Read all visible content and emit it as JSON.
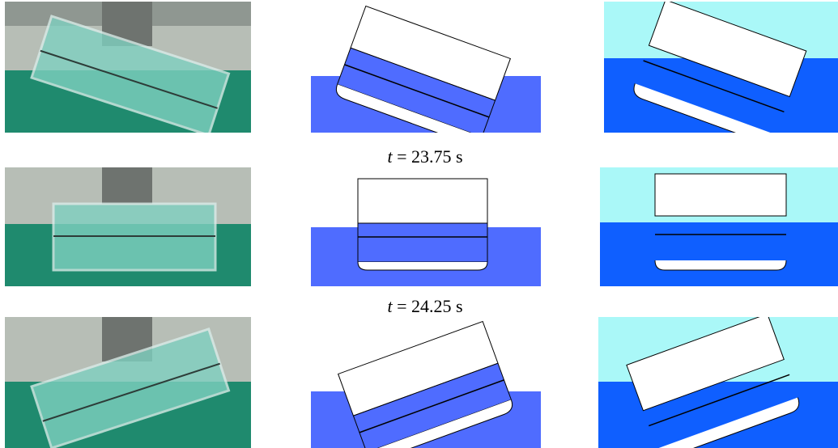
{
  "figure": {
    "captions": [
      {
        "var": "t",
        "text": " = 23.75 s"
      },
      {
        "var": "t",
        "text": " = 24.25 s"
      }
    ],
    "rows": [
      {
        "tilt": "right-down"
      },
      {
        "tilt": "level"
      },
      {
        "tilt": "left-down"
      }
    ],
    "colors": {
      "tank_water": "#1f8a6e",
      "tank_wall": "#b9c2bc",
      "sim_liquid": "#4f6cff",
      "sim_gas": "#ffffff",
      "two_phase_liquid": "#0f5fff",
      "two_phase_gas": "#aaf8f8"
    }
  }
}
